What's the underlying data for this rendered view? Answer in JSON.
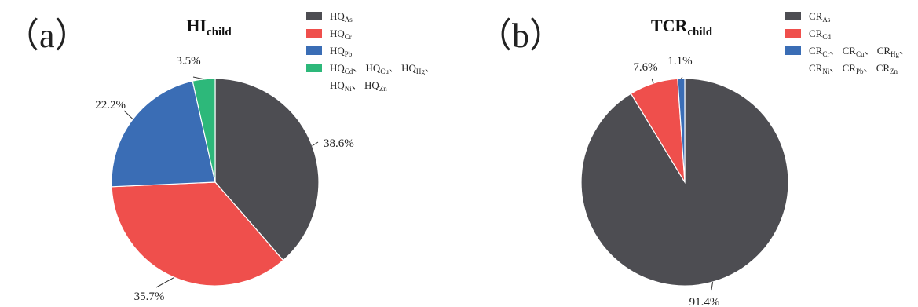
{
  "chart_data": [
    {
      "type": "pie",
      "panel": "（a）",
      "title": {
        "main": "HI",
        "sub": "child"
      },
      "slices": [
        {
          "label": "38.6%",
          "value": 38.6,
          "color": "#4d4d52"
        },
        {
          "label": "35.7%",
          "value": 35.7,
          "color": "#ef4f4c"
        },
        {
          "label": "22.2%",
          "value": 22.2,
          "color": "#3a6db5"
        },
        {
          "label": "3.5%",
          "value": 3.5,
          "color": "#2db87a"
        }
      ],
      "legend": [
        {
          "color": "#4d4d52",
          "lines": [
            [
              [
                "HQ",
                "As"
              ]
            ]
          ]
        },
        {
          "color": "#ef4f4c",
          "lines": [
            [
              [
                "HQ",
                "Cr"
              ]
            ]
          ]
        },
        {
          "color": "#3a6db5",
          "lines": [
            [
              [
                "HQ",
                "Pb"
              ]
            ]
          ]
        },
        {
          "color": "#2db87a",
          "lines": [
            [
              [
                "HQ",
                "Cd"
              ],
              [
                "、 HQ",
                "Cu"
              ],
              [
                "、 HQ",
                "Hg"
              ],
              [
                "、",
                ""
              ]
            ],
            [
              [
                "HQ",
                "Ni"
              ],
              [
                "、 HQ",
                "Zn"
              ]
            ]
          ]
        }
      ]
    },
    {
      "type": "pie",
      "panel": "（b）",
      "title": {
        "main": "TCR",
        "sub": "child"
      },
      "slices": [
        {
          "label": "91.4%",
          "value": 91.4,
          "color": "#4d4d52"
        },
        {
          "label": "7.6%",
          "value": 7.6,
          "color": "#ef4f4c"
        },
        {
          "label": "1.1%",
          "value": 1.1,
          "color": "#3a6db5"
        }
      ],
      "legend": [
        {
          "color": "#4d4d52",
          "lines": [
            [
              [
                "CR",
                "As"
              ]
            ]
          ]
        },
        {
          "color": "#ef4f4c",
          "lines": [
            [
              [
                "CR",
                "Cd"
              ]
            ]
          ]
        },
        {
          "color": "#3a6db5",
          "lines": [
            [
              [
                "CR",
                "Cr"
              ],
              [
                "、 CR",
                "Cu"
              ],
              [
                "、 CR",
                "Hg"
              ],
              [
                "、",
                ""
              ]
            ],
            [
              [
                "CR",
                "Ni"
              ],
              [
                "、 CR",
                "Pb"
              ],
              [
                "、 CR",
                "Zn"
              ]
            ]
          ]
        }
      ]
    }
  ]
}
